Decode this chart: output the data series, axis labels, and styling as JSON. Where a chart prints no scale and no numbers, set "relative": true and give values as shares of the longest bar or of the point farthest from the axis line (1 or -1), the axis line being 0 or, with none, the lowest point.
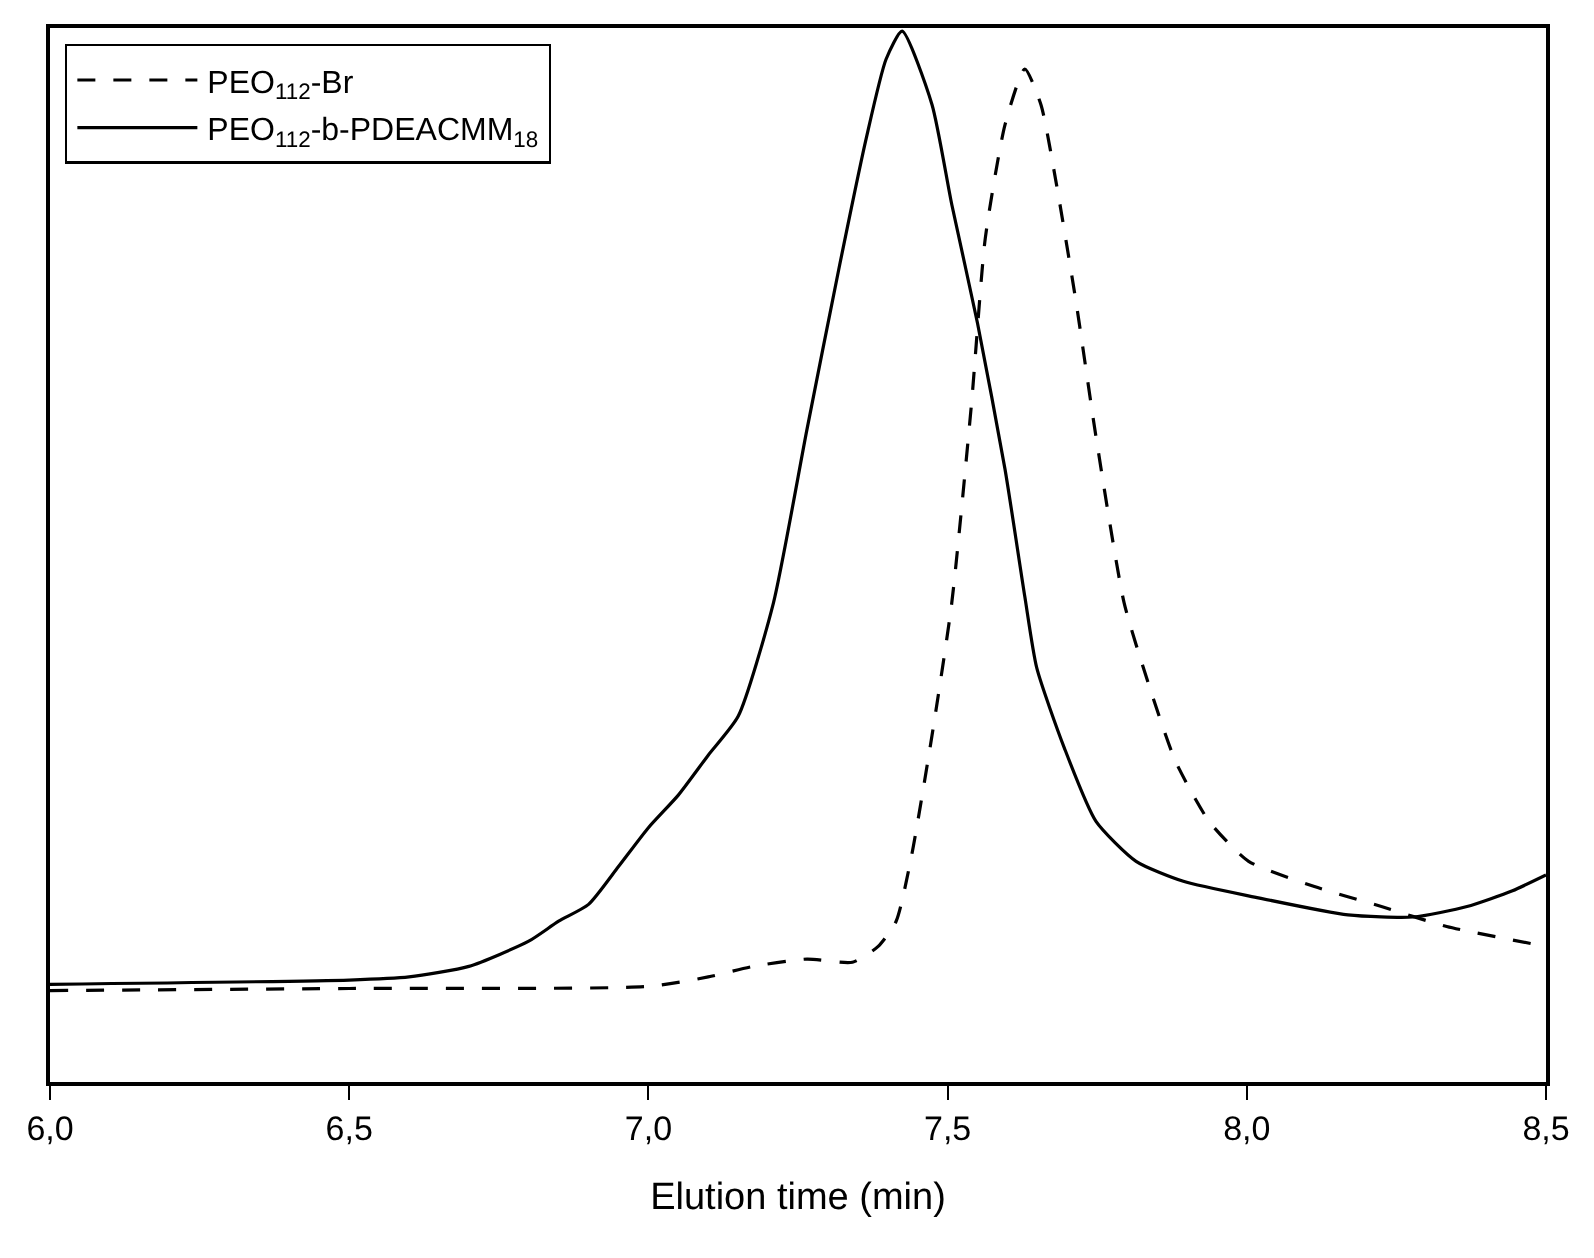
{
  "chart_data": {
    "type": "line",
    "xlabel": "Elution time (min)",
    "relative": true,
    "tick_labels": "x",
    "legend": "top left",
    "xlim": [
      6.0,
      8.5
    ],
    "xticks": [
      {
        "value": 6.0,
        "label": "6,0"
      },
      {
        "value": 6.5,
        "label": "6,5"
      },
      {
        "value": 7.0,
        "label": "7,0"
      },
      {
        "value": 7.5,
        "label": "7,5"
      },
      {
        "value": 8.0,
        "label": "8,0"
      },
      {
        "value": 8.5,
        "label": "8,5"
      }
    ],
    "series": [
      {
        "name": "PEO$_{112}$-Br",
        "color": "#000000",
        "line_style": "dashed",
        "x": [
          6.0,
          6.5,
          7.0,
          7.1,
          7.175,
          7.265,
          7.341,
          7.384,
          7.414,
          7.44,
          7.474,
          7.507,
          7.54,
          7.563,
          7.596,
          7.629,
          7.656,
          7.682,
          7.715,
          7.748,
          7.795,
          7.838,
          7.881,
          7.937,
          8.003,
          8.113,
          8.225,
          8.334,
          8.5
        ],
        "values": [
          0.087,
          0.089,
          0.091,
          0.1,
          0.11,
          0.117,
          0.114,
          0.129,
          0.153,
          0.216,
          0.33,
          0.456,
          0.646,
          0.803,
          0.911,
          0.964,
          0.93,
          0.854,
          0.741,
          0.614,
          0.456,
          0.375,
          0.305,
          0.248,
          0.21,
          0.186,
          0.167,
          0.148,
          0.129
        ]
      },
      {
        "name": "PEO$_{112}$-b-PDEACMM$_{18}$",
        "color": "#000000",
        "line_style": "solid",
        "x": [
          6.0,
          6.5,
          6.6,
          6.7,
          6.8,
          6.85,
          6.9,
          6.95,
          7.0,
          7.05,
          7.1,
          7.15,
          7.209,
          7.265,
          7.318,
          7.364,
          7.397,
          7.424,
          7.474,
          7.507,
          7.55,
          7.596,
          7.629,
          7.649,
          7.695,
          7.748,
          7.815,
          7.894,
          8.013,
          8.169,
          8.278,
          8.368,
          8.444,
          8.5
        ],
        "values": [
          0.093,
          0.097,
          0.1,
          0.11,
          0.134,
          0.153,
          0.169,
          0.205,
          0.242,
          0.273,
          0.311,
          0.348,
          0.456,
          0.621,
          0.773,
          0.898,
          0.973,
          1.0,
          0.93,
          0.835,
          0.722,
          0.583,
          0.462,
          0.394,
          0.318,
          0.248,
          0.21,
          0.191,
          0.176,
          0.159,
          0.157,
          0.167,
          0.182,
          0.197
        ]
      }
    ]
  }
}
